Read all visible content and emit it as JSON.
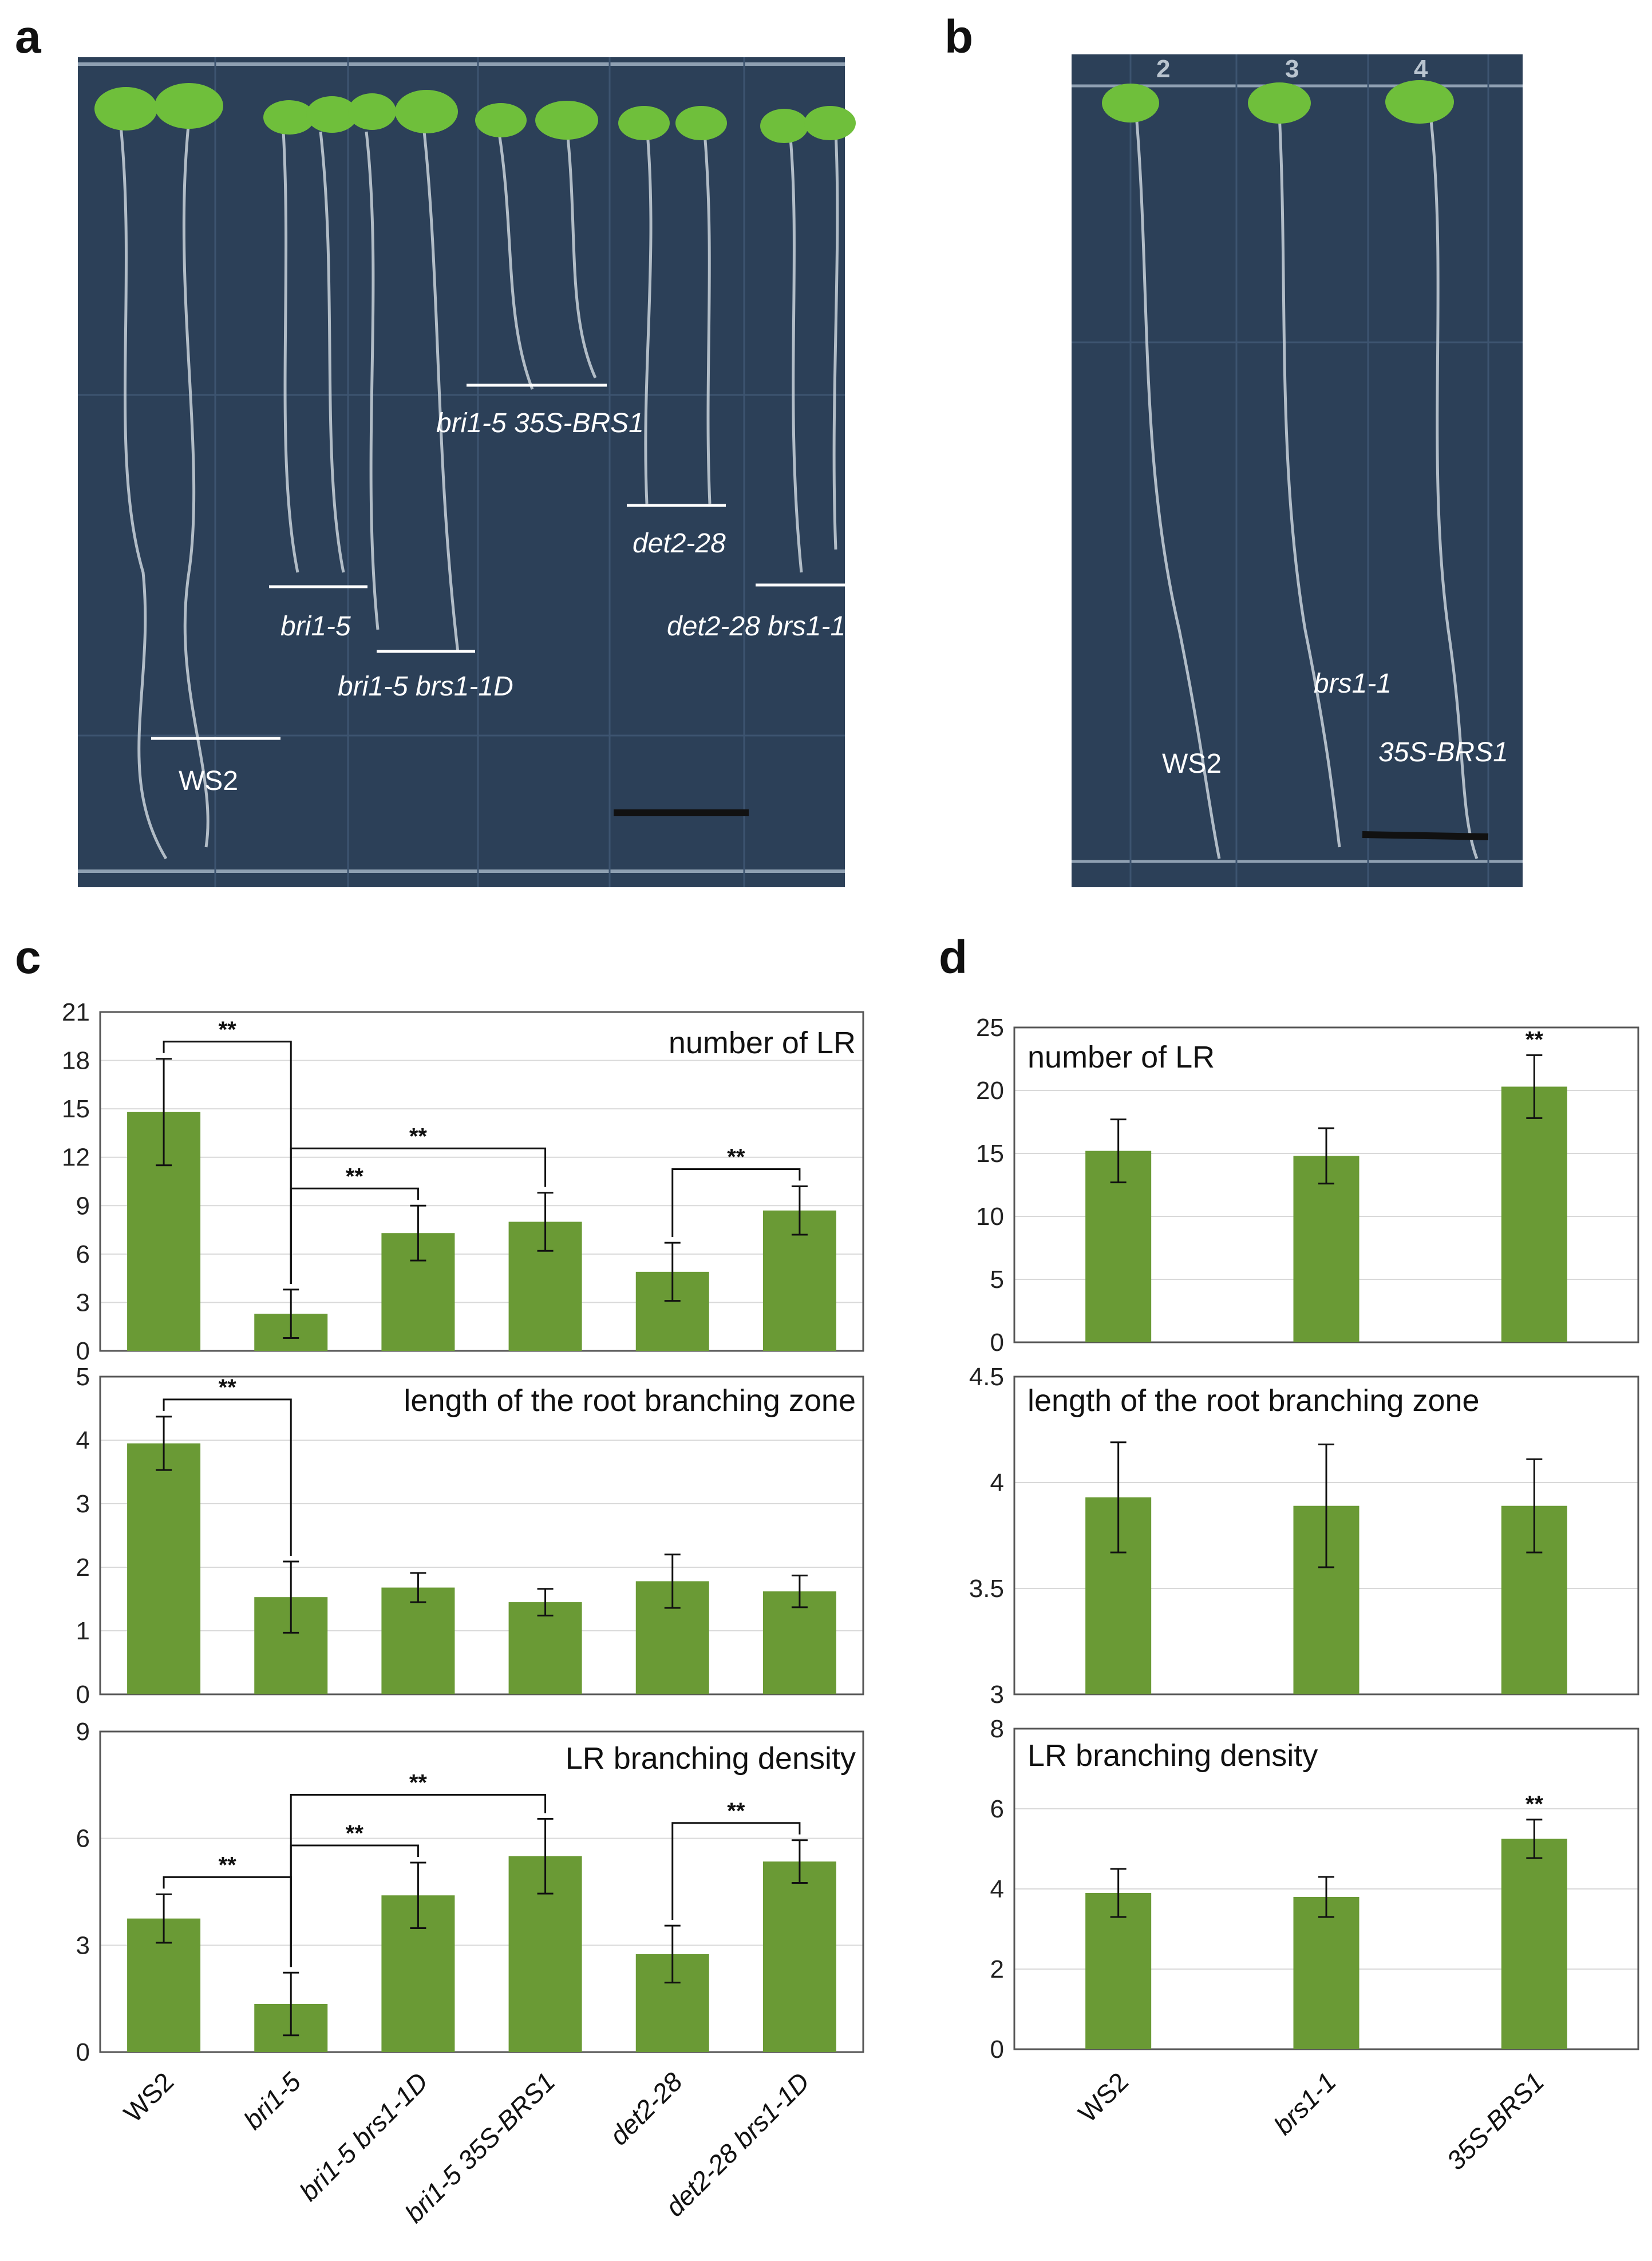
{
  "panels": {
    "a": "a",
    "b": "b",
    "c": "c",
    "d": "d"
  },
  "photo_a": {
    "labels": [
      {
        "text": "WS2",
        "italic": false
      },
      {
        "text": "bri1-5",
        "italic": true
      },
      {
        "text": "bri1-5  brs1-1D",
        "italic": true
      },
      {
        "text": "bri1-5  35S-BRS1",
        "italic": true
      },
      {
        "text": "det2-28",
        "italic": true
      },
      {
        "text": "det2-28  brs1-1D",
        "italic": true
      }
    ]
  },
  "photo_b": {
    "plate_numbers": [
      "2",
      "3",
      "4"
    ],
    "labels": [
      {
        "text": "WS2",
        "italic": false
      },
      {
        "text": "brs1-1",
        "italic": true
      },
      {
        "text": "35S-BRS1",
        "italic": true
      }
    ]
  },
  "colors": {
    "bar": "#6a9a35",
    "plate_bg": "#2b3f56",
    "plate_line": "#4e6480"
  },
  "chart_data": [
    {
      "panel": "c",
      "type": "bar",
      "title": "number of LR",
      "categories": [
        "WS2",
        "bri1-5",
        "bri1-5 brs1-1D",
        "bri1-5 35S-BRS1",
        "det2-28",
        "det2-28 brs1-1D"
      ],
      "values": [
        14.8,
        2.3,
        7.3,
        8.0,
        4.9,
        8.7
      ],
      "errors": [
        3.3,
        1.5,
        1.7,
        1.8,
        1.8,
        1.5
      ],
      "ylim": [
        0,
        21
      ],
      "yticks": [
        "0",
        "3",
        "6",
        "9",
        "12",
        "15",
        "18",
        "21"
      ],
      "significance": [
        {
          "from": 0,
          "to": 1,
          "label": "**"
        },
        {
          "from": 1,
          "to": 2,
          "label": "**"
        },
        {
          "from": 1,
          "to": 3,
          "label": "**"
        },
        {
          "from": 4,
          "to": 5,
          "label": "**"
        }
      ]
    },
    {
      "panel": "c",
      "type": "bar",
      "title": "length of the root branching zone",
      "categories": [
        "WS2",
        "bri1-5",
        "bri1-5 brs1-1D",
        "bri1-5 35S-BRS1",
        "det2-28",
        "det2-28 brs1-1D"
      ],
      "values": [
        3.95,
        1.53,
        1.68,
        1.45,
        1.78,
        1.62
      ],
      "errors": [
        0.42,
        0.56,
        0.23,
        0.21,
        0.42,
        0.25
      ],
      "ylim": [
        0,
        5
      ],
      "yticks": [
        "0",
        "1",
        "2",
        "3",
        "4",
        "5"
      ],
      "significance": [
        {
          "from": 0,
          "to": 1,
          "label": "**"
        }
      ]
    },
    {
      "panel": "c",
      "type": "bar",
      "title": "LR branching density",
      "categories": [
        "WS2",
        "bri1-5",
        "bri1-5 brs1-1D",
        "bri1-5 35S-BRS1",
        "det2-28",
        "det2-28 brs1-1D"
      ],
      "values": [
        3.75,
        1.35,
        4.4,
        5.5,
        2.75,
        5.35
      ],
      "errors": [
        0.68,
        0.88,
        0.92,
        1.05,
        0.8,
        0.6
      ],
      "ylim": [
        0,
        9
      ],
      "yticks": [
        "0",
        "3",
        "6",
        "9"
      ],
      "significance": [
        {
          "from": 0,
          "to": 1,
          "label": "**"
        },
        {
          "from": 1,
          "to": 2,
          "label": "**"
        },
        {
          "from": 1,
          "to": 3,
          "label": "**"
        },
        {
          "from": 4,
          "to": 5,
          "label": "**"
        }
      ]
    },
    {
      "panel": "d",
      "type": "bar",
      "title": "number of LR",
      "categories": [
        "WS2",
        "brs1-1",
        "35S-BRS1"
      ],
      "values": [
        15.2,
        14.8,
        20.3
      ],
      "errors": [
        2.5,
        2.2,
        2.5
      ],
      "ylim": [
        0,
        25
      ],
      "yticks": [
        "0",
        "5",
        "10",
        "15",
        "20",
        "25"
      ],
      "stars": [
        {
          "index": 2,
          "label": "**"
        }
      ]
    },
    {
      "panel": "d",
      "type": "bar",
      "title": "length of the root branching zone",
      "categories": [
        "WS2",
        "brs1-1",
        "35S-BRS1"
      ],
      "values": [
        3.93,
        3.89,
        3.89
      ],
      "errors": [
        0.26,
        0.29,
        0.22
      ],
      "ylim": [
        3,
        4.5
      ],
      "yticks": [
        "3",
        "3.5",
        "4",
        "4.5"
      ],
      "stars": []
    },
    {
      "panel": "d",
      "type": "bar",
      "title": "LR branching density",
      "categories": [
        "WS2",
        "brs1-1",
        "35S-BRS1"
      ],
      "values": [
        3.9,
        3.8,
        5.25
      ],
      "errors": [
        0.6,
        0.5,
        0.48
      ],
      "ylim": [
        0,
        8
      ],
      "yticks": [
        "0",
        "2",
        "4",
        "6",
        "8"
      ],
      "stars": [
        {
          "index": 2,
          "label": "**"
        }
      ]
    }
  ]
}
